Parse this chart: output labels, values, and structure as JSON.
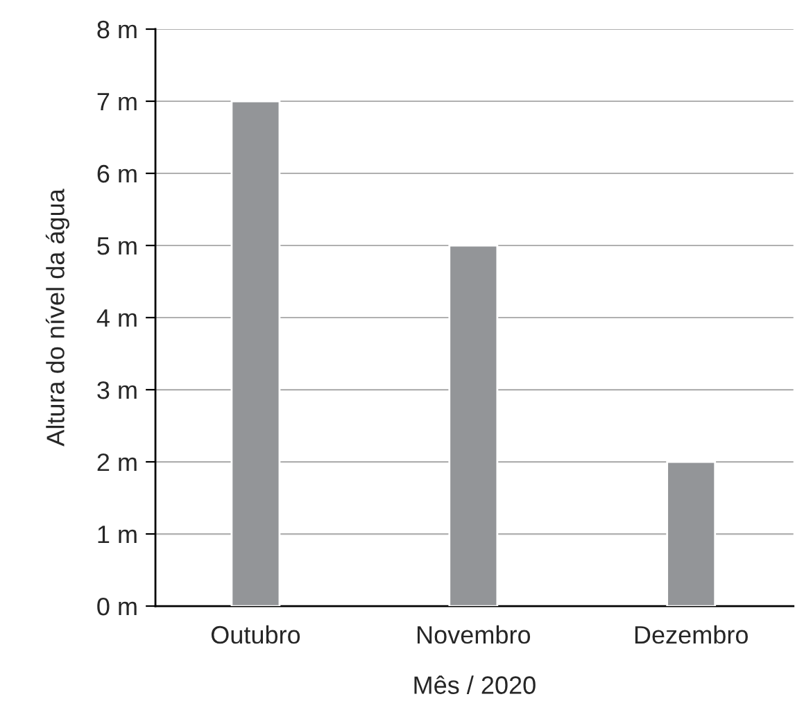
{
  "chart_data": {
    "type": "bar",
    "xlabel": "Mês / 2020",
    "ylabel": "Altura do nível da água",
    "categories": [
      "Outubro",
      "Novembro",
      "Dezembro"
    ],
    "values": [
      7,
      5,
      2
    ],
    "color": "#939598",
    "ylim": [
      0,
      8
    ],
    "yticks": [
      {
        "value": 0,
        "label": "0 m"
      },
      {
        "value": 1,
        "label": "1 m"
      },
      {
        "value": 2,
        "label": "2 m"
      },
      {
        "value": 3,
        "label": "3 m"
      },
      {
        "value": 4,
        "label": "4 m"
      },
      {
        "value": 5,
        "label": "5 m"
      },
      {
        "value": 6,
        "label": "6 m"
      },
      {
        "value": 7,
        "label": "7 m"
      },
      {
        "value": 8,
        "label": "8 m"
      }
    ],
    "grid": "y",
    "legend": false
  }
}
